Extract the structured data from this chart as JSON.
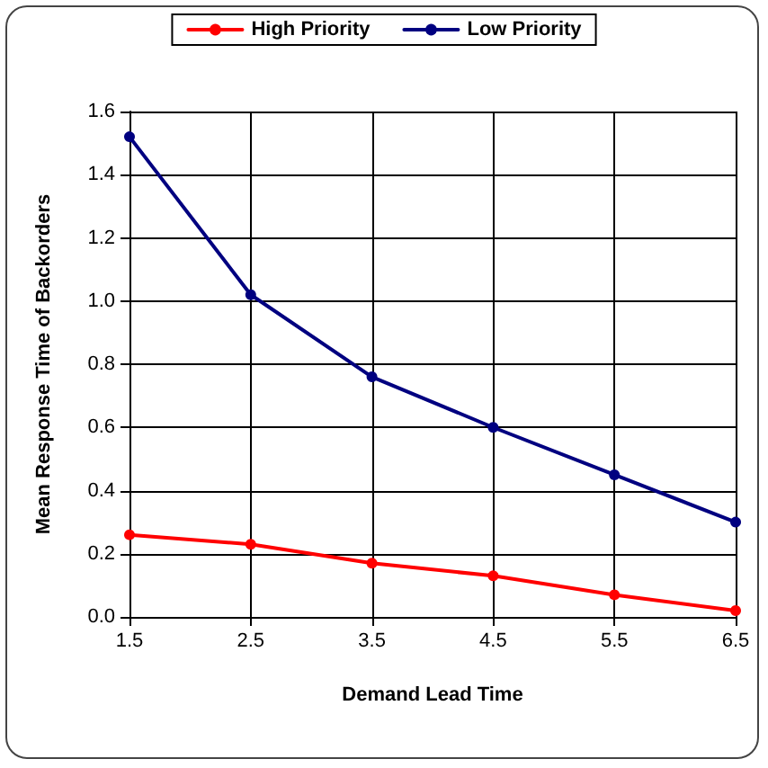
{
  "chart_data": {
    "type": "line",
    "xlabel": "Demand Lead Time",
    "ylabel": "Mean Response Time of Backorders",
    "x": [
      1.5,
      2.5,
      3.5,
      4.5,
      5.5,
      6.5
    ],
    "series": [
      {
        "name": "High Priority",
        "color": "#ff0000",
        "values": [
          0.26,
          0.23,
          0.17,
          0.13,
          0.07,
          0.02
        ]
      },
      {
        "name": "Low Priority",
        "color": "#000080",
        "values": [
          1.52,
          1.02,
          0.76,
          0.6,
          0.45,
          0.3
        ]
      }
    ],
    "xlim": [
      1.5,
      6.5
    ],
    "xticks": [
      1.5,
      2.5,
      3.5,
      4.5,
      5.5,
      6.5
    ],
    "ylim": [
      0,
      1.6
    ],
    "yticks": [
      {
        "value": 0,
        "label": "0.0"
      },
      0.2,
      0.4,
      0.6,
      0.8,
      {
        "value": 1,
        "label": "1.0"
      },
      1.2,
      1.4,
      1.6
    ],
    "grid": true,
    "legend": "top",
    "marker": "circle",
    "line_style": "solid"
  }
}
